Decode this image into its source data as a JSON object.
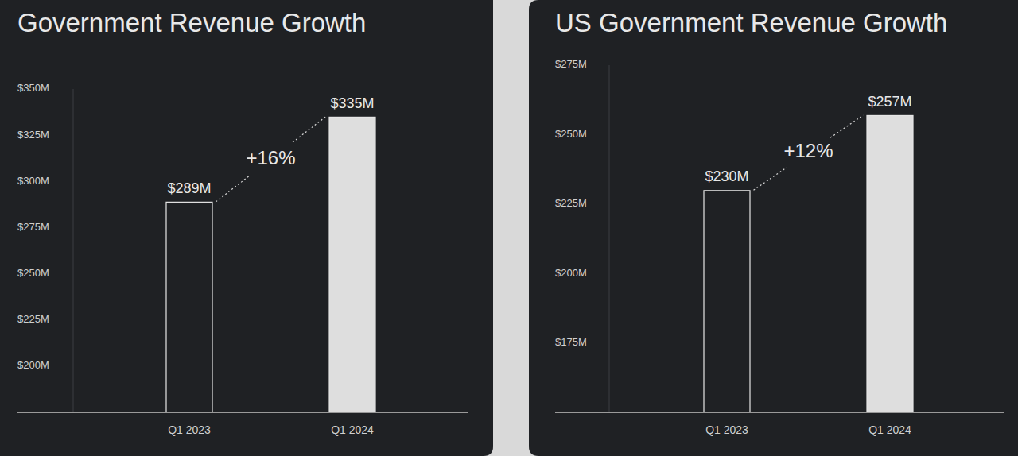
{
  "chart_data": [
    {
      "type": "bar",
      "title": "Government Revenue Growth",
      "categories": [
        "Q1 2023",
        "Q1 2024"
      ],
      "values": [
        289,
        335
      ],
      "value_labels": [
        "$289M",
        "$335M"
      ],
      "data_labels": true,
      "colors": [
        "#1f2124",
        "#dedede"
      ],
      "annotation": "+16%",
      "ylim": [
        175,
        350
      ],
      "yticks": [
        {
          "value": 200,
          "label": "$200M"
        },
        {
          "value": 225,
          "label": "$225M"
        },
        {
          "value": 250,
          "label": "$250M"
        },
        {
          "value": 275,
          "label": "$275M"
        },
        {
          "value": 300,
          "label": "$300M"
        },
        {
          "value": 325,
          "label": "$325M"
        },
        {
          "value": 350,
          "label": "$350M"
        }
      ],
      "grid": false
    },
    {
      "type": "bar",
      "title": "US Government Revenue Growth",
      "categories": [
        "Q1 2023",
        "Q1 2024"
      ],
      "values": [
        230,
        257
      ],
      "value_labels": [
        "$230M",
        "$257M"
      ],
      "data_labels": true,
      "colors": [
        "#1f2124",
        "#dedede"
      ],
      "annotation": "+12%",
      "ylim": [
        150,
        275
      ],
      "yticks": [
        {
          "value": 175,
          "label": "$175M"
        },
        {
          "value": 200,
          "label": "$200M"
        },
        {
          "value": 225,
          "label": "$225M"
        },
        {
          "value": 250,
          "label": "$250M"
        },
        {
          "value": 275,
          "label": "$275M"
        }
      ],
      "grid": false
    }
  ]
}
